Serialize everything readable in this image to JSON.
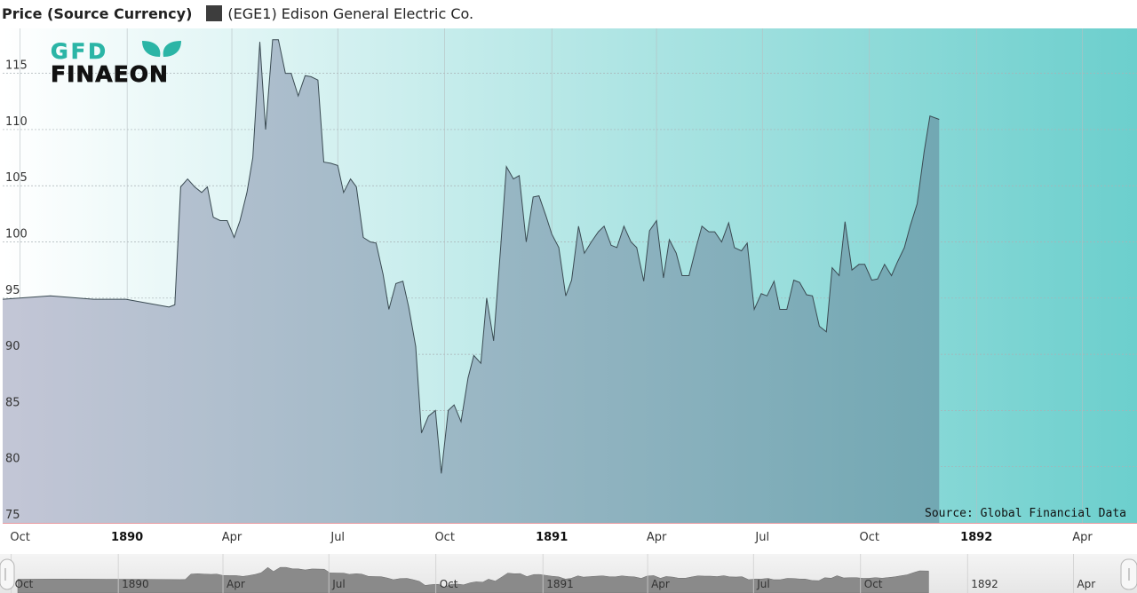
{
  "legend": {
    "title": "Price (Source Currency)",
    "series_label": "(EGE1) Edison General Electric Co.",
    "swatch_color": "#3d3d3d"
  },
  "logo": {
    "top": "GFD",
    "bottom": "FINAEON",
    "color_top": "#2bb5a6",
    "color_bottom": "#111111"
  },
  "source": "Source: Global Financial Data",
  "colors": {
    "plot_bg_left": "#ffffff",
    "plot_bg_right": "#6ccfcd",
    "area_left": "#c3c6d6",
    "area_right": "#72a8b3",
    "line": "#3a4a52"
  },
  "chart_data": {
    "type": "area",
    "title": "",
    "xlabel": "",
    "ylabel": "Price (Source Currency)",
    "ylim": [
      75,
      119
    ],
    "yticks": [
      75,
      80,
      85,
      90,
      95,
      100,
      105,
      110,
      115
    ],
    "grid": true,
    "xlim": [
      "1889-09-16",
      "1892-05-18"
    ],
    "xticks": [
      {
        "date": "1889-10-01",
        "label": "Oct",
        "bold": false
      },
      {
        "date": "1890-01-01",
        "label": "1890",
        "bold": true
      },
      {
        "date": "1890-04-01",
        "label": "Apr",
        "bold": false
      },
      {
        "date": "1890-07-01",
        "label": "Jul",
        "bold": false
      },
      {
        "date": "1890-10-01",
        "label": "Oct",
        "bold": false
      },
      {
        "date": "1891-01-01",
        "label": "1891",
        "bold": true
      },
      {
        "date": "1891-04-01",
        "label": "Apr",
        "bold": false
      },
      {
        "date": "1891-07-01",
        "label": "Jul",
        "bold": false
      },
      {
        "date": "1891-10-01",
        "label": "Oct",
        "bold": false
      },
      {
        "date": "1892-01-01",
        "label": "1892",
        "bold": true
      },
      {
        "date": "1892-04-01",
        "label": "Apr",
        "bold": false
      }
    ],
    "series": [
      {
        "name": "(EGE1) Edison General Electric Co.",
        "points": [
          [
            "1889-09-16",
            94.9
          ],
          [
            "1889-10-27",
            95.2
          ],
          [
            "1889-12-03",
            94.9
          ],
          [
            "1889-12-31",
            94.9
          ],
          [
            "1890-02-06",
            94.2
          ],
          [
            "1890-02-11",
            94.4
          ],
          [
            "1890-02-16",
            104.9
          ],
          [
            "1890-02-22",
            105.6
          ],
          [
            "1890-02-28",
            104.9
          ],
          [
            "1890-03-06",
            104.4
          ],
          [
            "1890-03-11",
            104.9
          ],
          [
            "1890-03-16",
            102.2
          ],
          [
            "1890-03-22",
            101.9
          ],
          [
            "1890-03-28",
            101.9
          ],
          [
            "1890-04-03",
            100.4
          ],
          [
            "1890-04-08",
            101.9
          ],
          [
            "1890-04-14",
            104.4
          ],
          [
            "1890-04-19",
            107.5
          ],
          [
            "1890-04-25",
            117.8
          ],
          [
            "1890-04-30",
            110.0
          ],
          [
            "1890-05-06",
            118.0
          ],
          [
            "1890-05-11",
            118.0
          ],
          [
            "1890-05-17",
            115.0
          ],
          [
            "1890-05-22",
            115.0
          ],
          [
            "1890-05-28",
            113.0
          ],
          [
            "1890-06-03",
            114.8
          ],
          [
            "1890-06-08",
            114.7
          ],
          [
            "1890-06-14",
            114.4
          ],
          [
            "1890-06-19",
            107.1
          ],
          [
            "1890-06-25",
            107.0
          ],
          [
            "1890-07-01",
            106.8
          ],
          [
            "1890-07-06",
            104.4
          ],
          [
            "1890-07-12",
            105.6
          ],
          [
            "1890-07-17",
            104.9
          ],
          [
            "1890-07-23",
            100.4
          ],
          [
            "1890-07-29",
            100.0
          ],
          [
            "1890-08-03",
            99.9
          ],
          [
            "1890-08-09",
            97.1
          ],
          [
            "1890-08-14",
            94.0
          ],
          [
            "1890-08-20",
            96.3
          ],
          [
            "1890-08-26",
            96.5
          ],
          [
            "1890-08-31",
            94.2
          ],
          [
            "1890-09-06",
            90.7
          ],
          [
            "1890-09-11",
            83.0
          ],
          [
            "1890-09-17",
            84.5
          ],
          [
            "1890-09-23",
            85.0
          ],
          [
            "1890-09-28",
            79.4
          ],
          [
            "1890-10-04",
            85.0
          ],
          [
            "1890-10-09",
            85.5
          ],
          [
            "1890-10-15",
            84.0
          ],
          [
            "1890-10-21",
            87.9
          ],
          [
            "1890-10-26",
            89.9
          ],
          [
            "1890-11-01",
            89.2
          ],
          [
            "1890-11-06",
            95.0
          ],
          [
            "1890-11-12",
            91.2
          ],
          [
            "1890-11-18",
            99.5
          ],
          [
            "1890-11-23",
            106.7
          ],
          [
            "1890-11-29",
            105.6
          ],
          [
            "1890-12-04",
            105.9
          ],
          [
            "1890-12-10",
            100.0
          ],
          [
            "1890-12-16",
            104.0
          ],
          [
            "1890-12-21",
            104.1
          ],
          [
            "1890-12-27",
            102.3
          ],
          [
            "1891-01-01",
            100.7
          ],
          [
            "1891-01-07",
            99.5
          ],
          [
            "1891-01-13",
            95.2
          ],
          [
            "1891-01-18",
            96.6
          ],
          [
            "1891-01-24",
            101.4
          ],
          [
            "1891-01-29",
            99.0
          ],
          [
            "1891-02-04",
            100.0
          ],
          [
            "1891-02-10",
            100.9
          ],
          [
            "1891-02-15",
            101.4
          ],
          [
            "1891-02-21",
            99.7
          ],
          [
            "1891-02-26",
            99.5
          ],
          [
            "1891-03-04",
            101.4
          ],
          [
            "1891-03-10",
            100.0
          ],
          [
            "1891-03-15",
            99.5
          ],
          [
            "1891-03-21",
            96.5
          ],
          [
            "1891-03-26",
            101.0
          ],
          [
            "1891-04-01",
            101.9
          ],
          [
            "1891-04-07",
            96.8
          ],
          [
            "1891-04-12",
            100.2
          ],
          [
            "1891-04-18",
            99.0
          ],
          [
            "1891-04-23",
            97.0
          ],
          [
            "1891-04-29",
            97.0
          ],
          [
            "1891-05-05",
            99.5
          ],
          [
            "1891-05-10",
            101.4
          ],
          [
            "1891-05-16",
            100.9
          ],
          [
            "1891-05-21",
            100.9
          ],
          [
            "1891-05-27",
            100.0
          ],
          [
            "1891-06-02",
            101.7
          ],
          [
            "1891-06-07",
            99.5
          ],
          [
            "1891-06-13",
            99.2
          ],
          [
            "1891-06-18",
            99.9
          ],
          [
            "1891-06-24",
            94.0
          ],
          [
            "1891-06-30",
            95.4
          ],
          [
            "1891-07-05",
            95.2
          ],
          [
            "1891-07-11",
            96.5
          ],
          [
            "1891-07-16",
            94.0
          ],
          [
            "1891-07-22",
            94.0
          ],
          [
            "1891-07-28",
            96.6
          ],
          [
            "1891-08-02",
            96.4
          ],
          [
            "1891-08-08",
            95.3
          ],
          [
            "1891-08-13",
            95.2
          ],
          [
            "1891-08-19",
            92.5
          ],
          [
            "1891-08-25",
            92.0
          ],
          [
            "1891-08-30",
            97.7
          ],
          [
            "1891-09-05",
            97.0
          ],
          [
            "1891-09-10",
            101.8
          ],
          [
            "1891-09-16",
            97.5
          ],
          [
            "1891-09-22",
            98.0
          ],
          [
            "1891-09-27",
            98.0
          ],
          [
            "1891-10-03",
            96.6
          ],
          [
            "1891-10-08",
            96.7
          ],
          [
            "1891-10-14",
            98.0
          ],
          [
            "1891-10-20",
            97.0
          ],
          [
            "1891-10-25",
            98.2
          ],
          [
            "1891-10-31",
            99.5
          ],
          [
            "1891-11-05",
            101.4
          ],
          [
            "1891-11-11",
            103.4
          ],
          [
            "1891-11-17",
            108.0
          ],
          [
            "1891-11-22",
            111.2
          ],
          [
            "1891-11-30",
            110.9
          ]
        ]
      }
    ]
  }
}
